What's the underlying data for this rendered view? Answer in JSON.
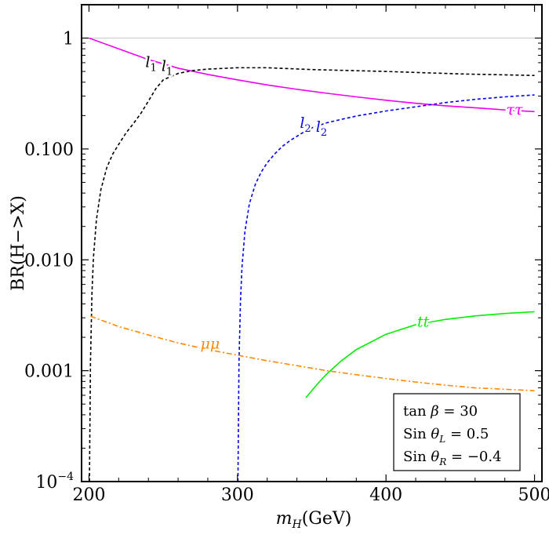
{
  "chart_data": {
    "type": "line",
    "xlabel": {
      "var": "m",
      "sub": "H",
      "unit": "(GeV)"
    },
    "ylabel": "BR(H−>X)",
    "xlim": [
      195,
      505
    ],
    "ylim": [
      0.0001,
      2.0
    ],
    "yscale": "log",
    "grid": false,
    "reference_line": 1,
    "x_ticks": [
      200,
      300,
      400,
      500
    ],
    "x_tick_labels": [
      "200",
      "300",
      "400",
      "500"
    ],
    "y_ticks": [
      {
        "value": 1,
        "label": "1"
      },
      {
        "value": 0.1,
        "label": "0.100"
      },
      {
        "value": 0.01,
        "label": "0.010"
      },
      {
        "value": 0.001,
        "label": "0.001"
      },
      {
        "value": 0.0001,
        "label": "10",
        "exp": "−4"
      }
    ],
    "series": [
      {
        "name": "tau-tau",
        "color": "#ee00ee",
        "style": "solid",
        "x": [
          200,
          220,
          240,
          260,
          280,
          300,
          320,
          340,
          360,
          380,
          400,
          420,
          440,
          460,
          480,
          500
        ],
        "y": [
          1.0,
          0.8,
          0.64,
          0.535,
          0.47,
          0.42,
          0.378,
          0.345,
          0.318,
          0.295,
          0.275,
          0.258,
          0.245,
          0.235,
          0.225,
          0.217
        ]
      },
      {
        "name": "l1 l1",
        "color": "#000000",
        "style": "dashed",
        "x": [
          200.3,
          201,
          202,
          203,
          205,
          208,
          212,
          216,
          220,
          225,
          230,
          235,
          240,
          245,
          250,
          260,
          270,
          280,
          300,
          320,
          350,
          400,
          450,
          500
        ],
        "y": [
          0.0001,
          0.0012,
          0.005,
          0.0105,
          0.023,
          0.043,
          0.068,
          0.09,
          0.11,
          0.14,
          0.17,
          0.21,
          0.27,
          0.35,
          0.42,
          0.48,
          0.51,
          0.525,
          0.54,
          0.54,
          0.52,
          0.5,
          0.475,
          0.46
        ]
      },
      {
        "name": "l2 l2",
        "color": "#0000ee",
        "style": "dashed",
        "x": [
          300.3,
          301,
          302,
          303,
          305,
          308,
          312,
          316,
          320,
          325,
          330,
          335,
          340,
          345,
          350,
          360,
          370,
          380,
          400,
          420,
          440,
          460,
          480,
          500
        ],
        "y": [
          0.0001,
          0.0012,
          0.0042,
          0.0085,
          0.018,
          0.032,
          0.048,
          0.062,
          0.075,
          0.09,
          0.105,
          0.118,
          0.13,
          0.143,
          0.155,
          0.172,
          0.185,
          0.198,
          0.22,
          0.24,
          0.262,
          0.28,
          0.295,
          0.307
        ]
      },
      {
        "name": "mu-mu",
        "color": "#ff8800",
        "style": "dashdot",
        "x": [
          201,
          220,
          240,
          260,
          280,
          300,
          320,
          340,
          360,
          380,
          400,
          420,
          440,
          460,
          480,
          500
        ],
        "y": [
          0.0031,
          0.0025,
          0.0021,
          0.00178,
          0.00155,
          0.00138,
          0.00123,
          0.00111,
          0.001,
          0.00092,
          0.00085,
          0.00079,
          0.00074,
          0.0007,
          0.00068,
          0.00066
        ]
      },
      {
        "name": "t-t",
        "color": "#00ee00",
        "style": "solid",
        "x": [
          346,
          350,
          355,
          360,
          370,
          380,
          400,
          420,
          440,
          460,
          480,
          500
        ],
        "y": [
          0.00057,
          0.00066,
          0.00079,
          0.00093,
          0.00123,
          0.00155,
          0.00213,
          0.0026,
          0.0029,
          0.00312,
          0.00328,
          0.0034
        ]
      }
    ],
    "curve_labels": [
      {
        "series": "l1 l1",
        "x": 238,
        "y": 0.55,
        "parts": [
          {
            "t": "l",
            "sub": "1"
          },
          {
            "t": " l",
            "sub": "1"
          }
        ]
      },
      {
        "series": "l2 l2",
        "x": 342,
        "y": 0.155,
        "parts": [
          {
            "t": "l",
            "sub": "2"
          },
          {
            "t": " l",
            "sub": "2"
          }
        ]
      },
      {
        "series": "tau-tau",
        "x": 481,
        "y": 0.205,
        "parts": [
          {
            "t": "ττ"
          }
        ]
      },
      {
        "series": "mu-mu",
        "x": 275,
        "y": 0.00158,
        "parts": [
          {
            "t": "μμ"
          }
        ]
      },
      {
        "series": "t-t",
        "x": 421,
        "y": 0.0025,
        "parts": [
          {
            "t": "tt"
          }
        ],
        "upright": true
      }
    ],
    "legend": {
      "position": "bottom-right",
      "lines": [
        {
          "prefix": "tan ",
          "greek": "β",
          "sub": "",
          "value": " = 30"
        },
        {
          "prefix": "Sin ",
          "greek": "θ",
          "sub": "L",
          "value": " = 0.5"
        },
        {
          "prefix": "Sin ",
          "greek": "θ",
          "sub": "R",
          "value": " = −0.4"
        }
      ]
    }
  }
}
